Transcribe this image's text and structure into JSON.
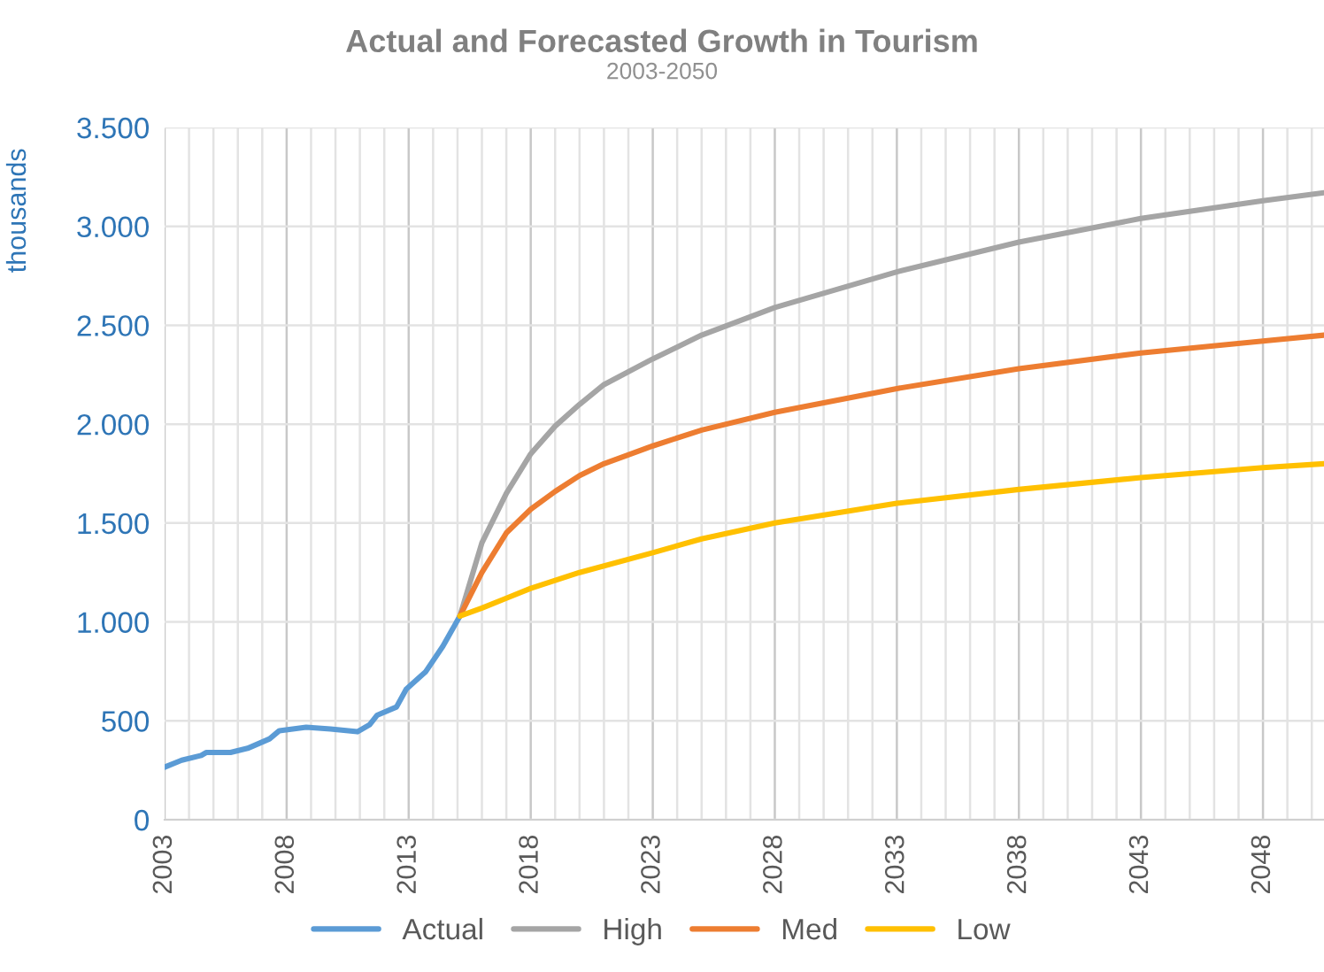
{
  "chart_data": {
    "type": "line",
    "title": "Actual and Forecasted Growth in Tourism",
    "subtitle": "2003-2050",
    "ylabel": "thousands",
    "series": [
      {
        "name": "Actual",
        "color": "#5b9bd5",
        "x": [
          2003,
          2003.7,
          2004.5,
          2004.7,
          2005.7,
          2006.4,
          2007.3,
          2007.7,
          2008.8,
          2009.8,
          2010.9,
          2011.4,
          2011.7,
          2012.5,
          2012.9,
          2013.7,
          2014.4,
          2015.1
        ],
        "values": [
          266,
          301,
          325,
          340,
          340,
          361,
          409,
          450,
          468,
          459,
          445,
          481,
          528,
          570,
          660,
          749,
          877,
          1030
        ]
      },
      {
        "name": "High",
        "color": "#a5a5a5",
        "x": [
          2015.1,
          2016,
          2017,
          2018,
          2019,
          2020,
          2021,
          2023,
          2025,
          2028,
          2033,
          2038,
          2043,
          2048,
          2050.5
        ],
        "values": [
          1030,
          1400,
          1650,
          1850,
          1990,
          2100,
          2200,
          2330,
          2450,
          2590,
          2770,
          2920,
          3040,
          3130,
          3170
        ]
      },
      {
        "name": "Med",
        "color": "#ed7d31",
        "x": [
          2015.1,
          2016,
          2017,
          2018,
          2019,
          2020,
          2021,
          2023,
          2025,
          2028,
          2033,
          2038,
          2043,
          2048,
          2050.5
        ],
        "values": [
          1030,
          1250,
          1450,
          1570,
          1660,
          1740,
          1800,
          1890,
          1970,
          2060,
          2180,
          2280,
          2360,
          2420,
          2450
        ]
      },
      {
        "name": "Low",
        "color": "#ffc000",
        "x": [
          2015.1,
          2016,
          2017,
          2018,
          2020,
          2023,
          2025,
          2028,
          2033,
          2038,
          2043,
          2048,
          2050.5
        ],
        "values": [
          1030,
          1070,
          1120,
          1170,
          1250,
          1350,
          1420,
          1500,
          1600,
          1670,
          1730,
          1780,
          1800
        ]
      }
    ],
    "xlim": [
      2003,
      2050.5
    ],
    "xticks": [
      2003,
      {
        "value": 2004,
        "label": null
      },
      {
        "value": 2005,
        "label": null
      },
      {
        "value": 2006,
        "label": null
      },
      {
        "value": 2007,
        "label": null
      },
      2008,
      {
        "value": 2009,
        "label": null
      },
      {
        "value": 2010,
        "label": null
      },
      {
        "value": 2011,
        "label": null
      },
      {
        "value": 2012,
        "label": null
      },
      2013,
      {
        "value": 2014,
        "label": null
      },
      {
        "value": 2015,
        "label": null
      },
      {
        "value": 2016,
        "label": null
      },
      {
        "value": 2017,
        "label": null
      },
      2018,
      {
        "value": 2019,
        "label": null
      },
      {
        "value": 2020,
        "label": null
      },
      {
        "value": 2021,
        "label": null
      },
      {
        "value": 2022,
        "label": null
      },
      2023,
      {
        "value": 2024,
        "label": null
      },
      {
        "value": 2025,
        "label": null
      },
      {
        "value": 2026,
        "label": null
      },
      {
        "value": 2027,
        "label": null
      },
      2028,
      {
        "value": 2029,
        "label": null
      },
      {
        "value": 2030,
        "label": null
      },
      {
        "value": 2031,
        "label": null
      },
      {
        "value": 2032,
        "label": null
      },
      2033,
      {
        "value": 2034,
        "label": null
      },
      {
        "value": 2035,
        "label": null
      },
      {
        "value": 2036,
        "label": null
      },
      {
        "value": 2037,
        "label": null
      },
      2038,
      {
        "value": 2039,
        "label": null
      },
      {
        "value": 2040,
        "label": null
      },
      {
        "value": 2041,
        "label": null
      },
      {
        "value": 2042,
        "label": null
      },
      2043,
      {
        "value": 2044,
        "label": null
      },
      {
        "value": 2045,
        "label": null
      },
      {
        "value": 2046,
        "label": null
      },
      {
        "value": 2047,
        "label": null
      },
      2048,
      {
        "value": 2049,
        "label": null
      },
      {
        "value": 2050,
        "label": null
      }
    ],
    "ylim": [
      0,
      3500
    ],
    "yticks": [
      0,
      {
        "value": 500,
        "label": "500"
      },
      {
        "value": 1000,
        "label": "1.000"
      },
      {
        "value": 1500,
        "label": "1.500"
      },
      {
        "value": 2000,
        "label": "2.000"
      },
      {
        "value": 2500,
        "label": "2.500"
      },
      {
        "value": 3000,
        "label": "3.000"
      },
      {
        "value": 3500,
        "label": "3.500"
      }
    ],
    "grid": true,
    "legend": "bottom",
    "line_style": "solid",
    "marker": "none"
  }
}
